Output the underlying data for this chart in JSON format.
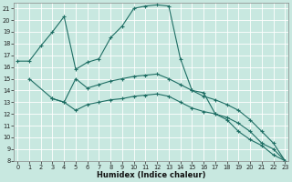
{
  "xlabel": "Humidex (Indice chaleur)",
  "background_color": "#c8e8e0",
  "grid_color": "#b0d0c8",
  "line_color": "#1e6e64",
  "xlim": [
    0,
    23
  ],
  "ylim": [
    8,
    21.5
  ],
  "yticks": [
    8,
    9,
    10,
    11,
    12,
    13,
    14,
    15,
    16,
    17,
    18,
    19,
    20,
    21
  ],
  "xticks": [
    0,
    1,
    2,
    3,
    4,
    5,
    6,
    7,
    8,
    9,
    10,
    11,
    12,
    13,
    14,
    15,
    16,
    17,
    18,
    19,
    20,
    21,
    22,
    23
  ],
  "line1_x": [
    0,
    1,
    2,
    3,
    4,
    5,
    6,
    7,
    8,
    9,
    10,
    11,
    12,
    13,
    14,
    15,
    16,
    17,
    18,
    19,
    20,
    21,
    22,
    23
  ],
  "line1_y": [
    16.5,
    16.5,
    17.8,
    19.0,
    20.3,
    15.8,
    16.4,
    16.7,
    18.5,
    19.5,
    21.0,
    21.2,
    21.3,
    21.2,
    16.7,
    14.0,
    13.8,
    12.0,
    11.5,
    10.5,
    9.8,
    9.3,
    8.5,
    8.0
  ],
  "line2_x": [
    1,
    3,
    4,
    5,
    6,
    7,
    8,
    9,
    10,
    11,
    12,
    13,
    14,
    15,
    16,
    17,
    18,
    19,
    20,
    21,
    22,
    23
  ],
  "line2_y": [
    15.0,
    13.3,
    13.0,
    15.0,
    14.2,
    14.5,
    14.8,
    15.0,
    15.2,
    15.3,
    15.4,
    15.0,
    14.5,
    14.0,
    13.5,
    13.2,
    12.8,
    12.3,
    11.5,
    10.5,
    9.5,
    8.0
  ],
  "line3_x": [
    3,
    4,
    5,
    6,
    7,
    8,
    9,
    10,
    11,
    12,
    13,
    14,
    15,
    16,
    17,
    18,
    19,
    20,
    21,
    22,
    23
  ],
  "line3_y": [
    13.3,
    13.0,
    12.3,
    12.8,
    13.0,
    13.2,
    13.3,
    13.5,
    13.6,
    13.7,
    13.5,
    13.0,
    12.5,
    12.2,
    12.0,
    11.7,
    11.2,
    10.5,
    9.5,
    9.0,
    8.0
  ]
}
